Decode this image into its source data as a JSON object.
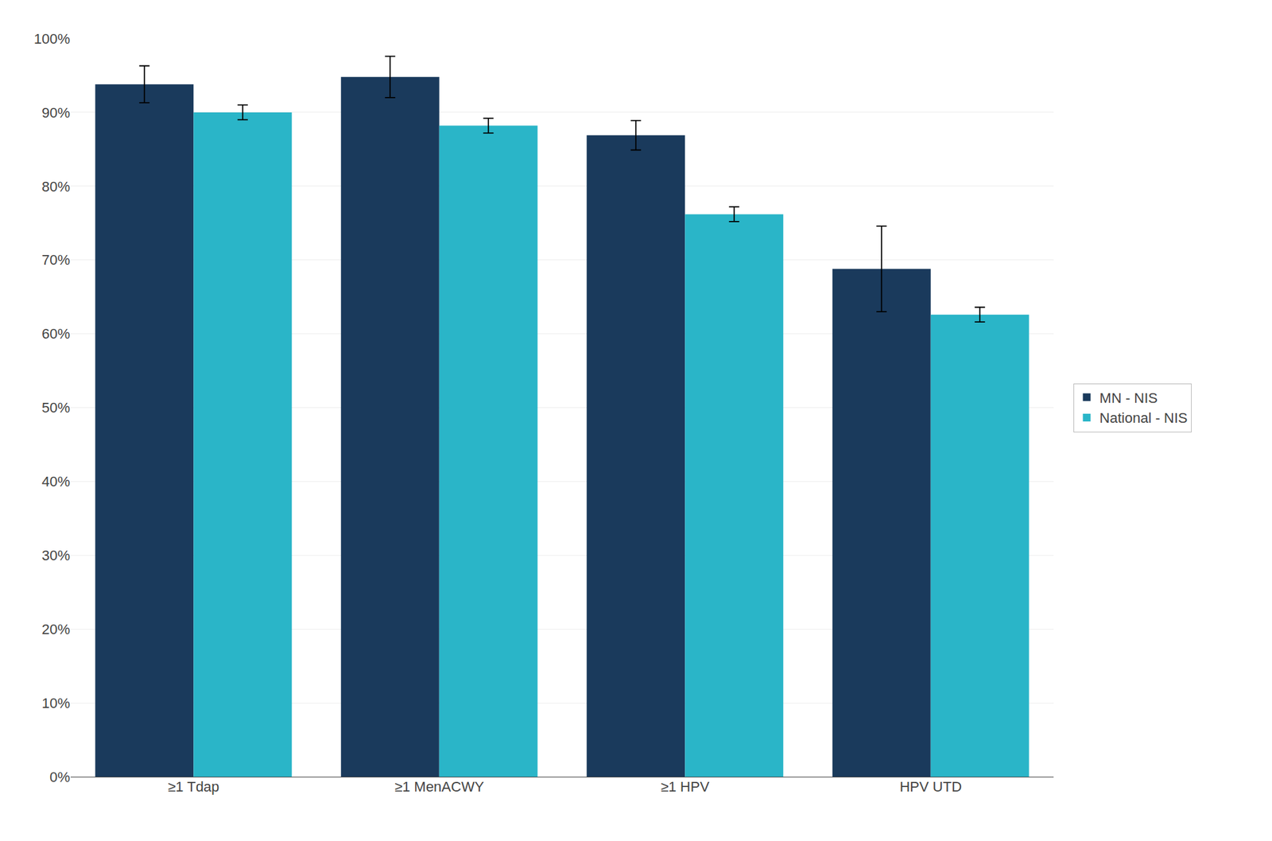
{
  "chart_data": {
    "type": "bar",
    "categories": [
      "≥1 Tdap",
      "≥1 MenACWY",
      "≥1 HPV",
      "HPV UTD"
    ],
    "series": [
      {
        "name": "MN - NIS",
        "color": "#1a3a5c",
        "values": [
          0.938,
          0.948,
          0.869,
          0.688
        ],
        "errors_upper": [
          0.025,
          0.028,
          0.02,
          0.058
        ],
        "errors_lower": [
          0.025,
          0.028,
          0.02,
          0.058
        ]
      },
      {
        "name": "National - NIS",
        "color": "#2ab5c8",
        "values": [
          0.9,
          0.882,
          0.762,
          0.626
        ],
        "errors_upper": [
          0.01,
          0.01,
          0.01,
          0.01
        ],
        "errors_lower": [
          0.01,
          0.01,
          0.01,
          0.01
        ]
      }
    ],
    "ylim": [
      0,
      1.0
    ],
    "yticks": [
      {
        "value": 0,
        "label": "0%"
      },
      {
        "value": 0.1,
        "label": "10%"
      },
      {
        "value": 0.2,
        "label": "20%"
      },
      {
        "value": 0.3,
        "label": "30%"
      },
      {
        "value": 0.4,
        "label": "40%"
      },
      {
        "value": 0.5,
        "label": "50%"
      },
      {
        "value": 0.6,
        "label": "60%"
      },
      {
        "value": 0.7,
        "label": "70%"
      },
      {
        "value": 0.8,
        "label": "80%"
      },
      {
        "value": 0.9,
        "label": "90%"
      },
      {
        "value": 1.0,
        "label": "100%"
      }
    ],
    "grid": true,
    "legend": "right"
  }
}
